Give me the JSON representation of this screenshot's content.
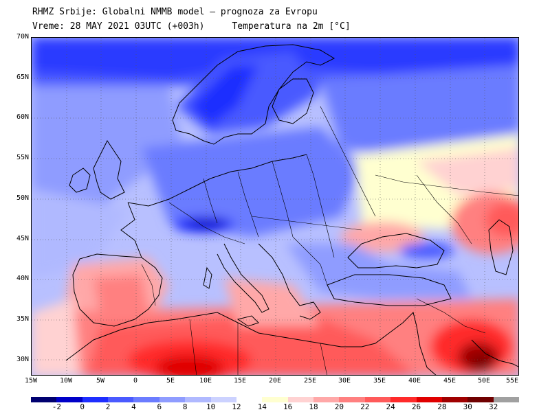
{
  "header": {
    "title": "RHMZ Srbije: Globalni NMMB model — prognoza za Evropu",
    "valid_time": "Vreme: 28 MAY 2021 03UTC (+003h)",
    "parameter": "Temperatura na 2m [°C]"
  },
  "map": {
    "lat_labels": [
      "70N",
      "65N",
      "60N",
      "55N",
      "50N",
      "45N",
      "40N",
      "35N",
      "30N"
    ],
    "lon_labels": [
      "15W",
      "10W",
      "5W",
      "0",
      "5E",
      "10E",
      "15E",
      "20E",
      "25E",
      "30E",
      "35E",
      "40E",
      "45E",
      "50E",
      "55E"
    ],
    "lon_min": -15,
    "lon_max": 55,
    "lat_min": 28,
    "lat_max": 70
  },
  "colorbar": {
    "labels": [
      "-2",
      "0",
      "2",
      "4",
      "6",
      "8",
      "10",
      "12",
      "14",
      "16",
      "18",
      "20",
      "22",
      "24",
      "26",
      "28",
      "30",
      "32"
    ],
    "colors": [
      "#000070",
      "#0000c8",
      "#1e2eff",
      "#4a5aff",
      "#6b7cff",
      "#8f9cff",
      "#b0b9ff",
      "#ccd2ff",
      "#ffffff",
      "#ffffd0",
      "#ffd2d2",
      "#ffa8a8",
      "#ff8080",
      "#ff5a5a",
      "#ff2a2a",
      "#e00000",
      "#a00000",
      "#700000",
      "#a0a0a0"
    ]
  }
}
